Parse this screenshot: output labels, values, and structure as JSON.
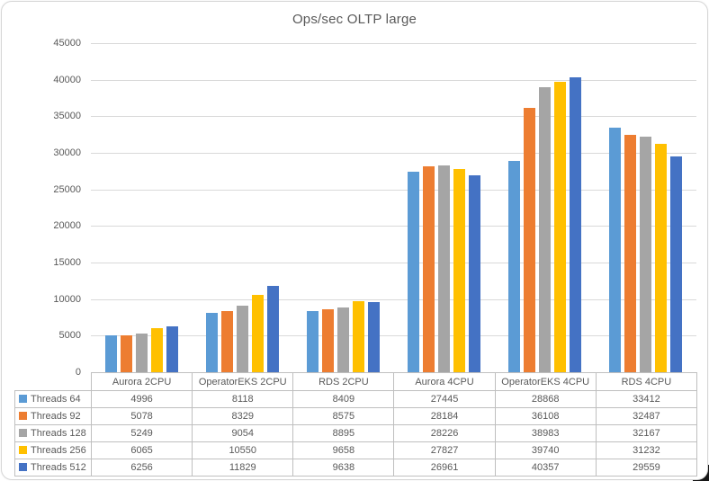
{
  "chart_data": {
    "type": "bar",
    "title": "Ops/sec OLTP large",
    "categories": [
      "Aurora 2CPU",
      "OperatorEKS 2CPU",
      "RDS 2CPU",
      "Aurora 4CPU",
      "OperatorEKS 4CPU",
      "RDS 4CPU"
    ],
    "series": [
      {
        "name": "Threads 64",
        "color": "#5B9BD5",
        "values": [
          4996,
          8118,
          8409,
          27445,
          28868,
          33412
        ]
      },
      {
        "name": "Threads 92",
        "color": "#ED7D31",
        "values": [
          5078,
          8329,
          8575,
          28184,
          36108,
          32487
        ]
      },
      {
        "name": "Threads 128",
        "color": "#A5A5A5",
        "values": [
          5249,
          9054,
          8895,
          28226,
          38983,
          32167
        ]
      },
      {
        "name": "Threads 256",
        "color": "#FFC000",
        "values": [
          6065,
          10550,
          9658,
          27827,
          39740,
          31232
        ]
      },
      {
        "name": "Threads 512",
        "color": "#4472C4",
        "values": [
          6256,
          11829,
          9638,
          26961,
          40357,
          29559
        ]
      }
    ],
    "ylim": [
      0,
      45000
    ],
    "ytick_step": 5000,
    "ytick_labels": [
      "45000",
      "40000",
      "35000",
      "30000",
      "25000",
      "20000",
      "15000",
      "10000",
      "5000",
      "0"
    ],
    "grid": true,
    "legend_position": "data-table-left",
    "data_table_shown": true
  },
  "colors": {
    "text": "#595959",
    "gridline": "#d9d9d9",
    "table_border": "#bfbfbf",
    "background": "#ffffff"
  }
}
